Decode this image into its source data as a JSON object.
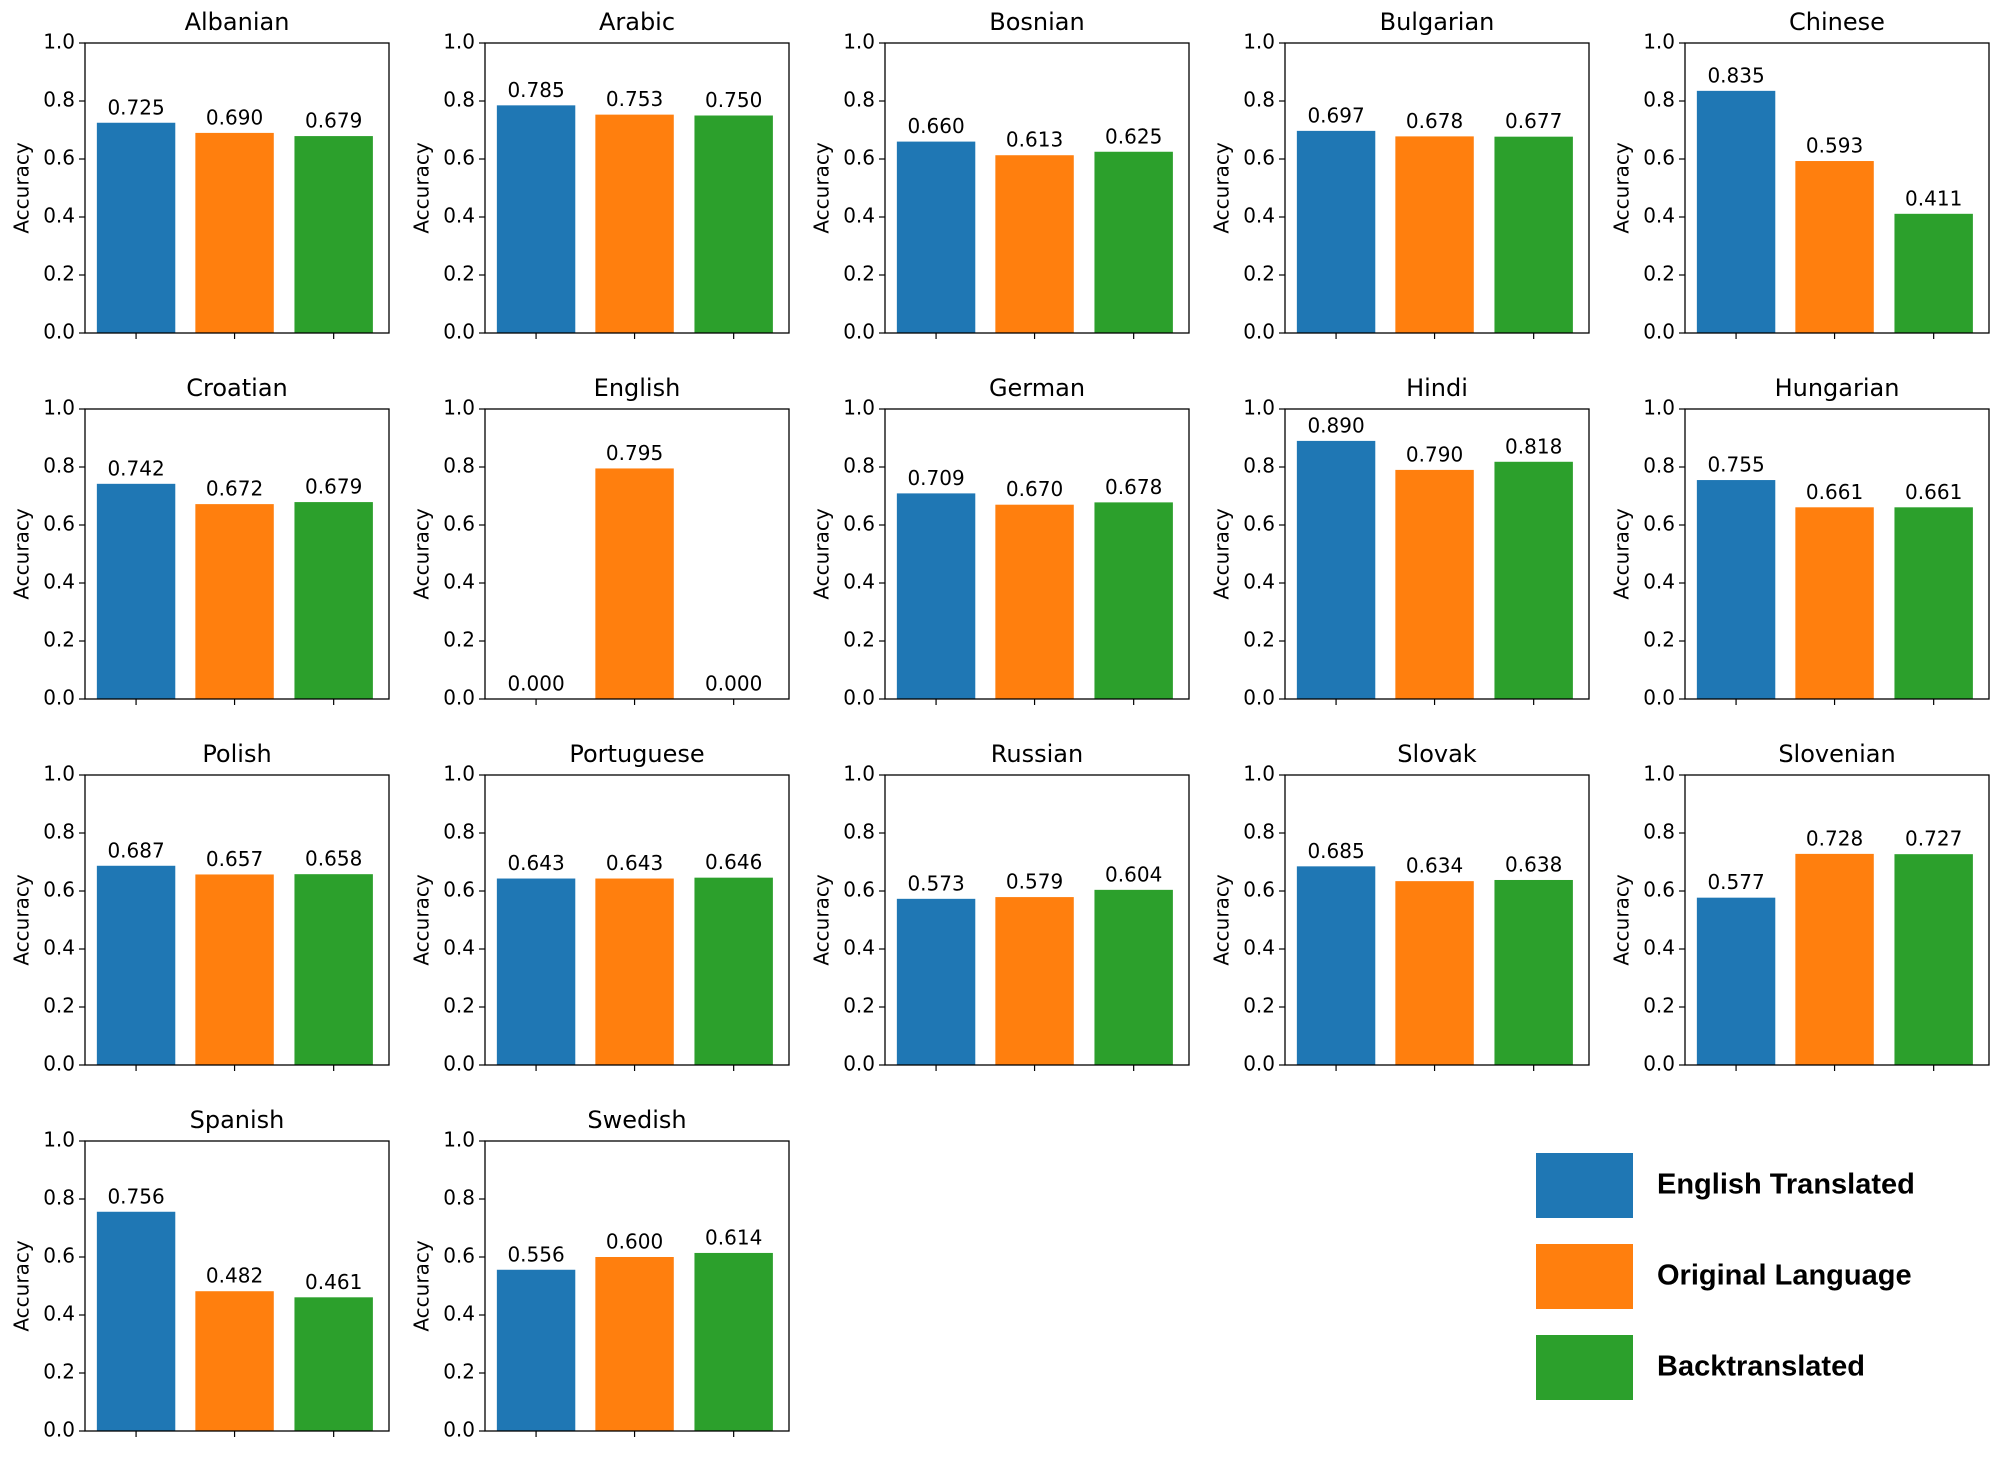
{
  "legend": {
    "series": [
      {
        "name": "English Translated",
        "color": "#1f77b4"
      },
      {
        "name": "Original Language",
        "color": "#ff7f0e"
      },
      {
        "name": "Backtranslated",
        "color": "#2ca02c"
      }
    ]
  },
  "chart_data": [
    {
      "type": "bar",
      "title": "Albanian",
      "y_label": "Accuracy",
      "values": [
        0.725,
        0.69,
        0.679
      ],
      "value_labels": [
        "0.725",
        "0.690",
        "0.679"
      ],
      "ylim": [
        0,
        1
      ],
      "yticks": [
        {
          "value": 0,
          "label": "0.0"
        },
        {
          "value": 0.2,
          "label": "0.2"
        },
        {
          "value": 0.4,
          "label": "0.4"
        },
        {
          "value": 0.6,
          "label": "0.6"
        },
        {
          "value": 0.8,
          "label": "0.8"
        },
        {
          "value": 1,
          "label": "1.0"
        }
      ]
    },
    {
      "type": "bar",
      "title": "Arabic",
      "y_label": "Accuracy",
      "values": [
        0.785,
        0.753,
        0.75
      ],
      "value_labels": [
        "0.785",
        "0.753",
        "0.750"
      ],
      "ylim": [
        0,
        1
      ],
      "yticks": [
        {
          "value": 0,
          "label": "0.0"
        },
        {
          "value": 0.2,
          "label": "0.2"
        },
        {
          "value": 0.4,
          "label": "0.4"
        },
        {
          "value": 0.6,
          "label": "0.6"
        },
        {
          "value": 0.8,
          "label": "0.8"
        },
        {
          "value": 1,
          "label": "1.0"
        }
      ]
    },
    {
      "type": "bar",
      "title": "Bosnian",
      "y_label": "Accuracy",
      "values": [
        0.66,
        0.613,
        0.625
      ],
      "value_labels": [
        "0.660",
        "0.613",
        "0.625"
      ],
      "ylim": [
        0,
        1
      ],
      "yticks": [
        {
          "value": 0,
          "label": "0.0"
        },
        {
          "value": 0.2,
          "label": "0.2"
        },
        {
          "value": 0.4,
          "label": "0.4"
        },
        {
          "value": 0.6,
          "label": "0.6"
        },
        {
          "value": 0.8,
          "label": "0.8"
        },
        {
          "value": 1,
          "label": "1.0"
        }
      ]
    },
    {
      "type": "bar",
      "title": "Bulgarian",
      "y_label": "Accuracy",
      "values": [
        0.697,
        0.678,
        0.677
      ],
      "value_labels": [
        "0.697",
        "0.678",
        "0.677"
      ],
      "ylim": [
        0,
        1
      ],
      "yticks": [
        {
          "value": 0,
          "label": "0.0"
        },
        {
          "value": 0.2,
          "label": "0.2"
        },
        {
          "value": 0.4,
          "label": "0.4"
        },
        {
          "value": 0.6,
          "label": "0.6"
        },
        {
          "value": 0.8,
          "label": "0.8"
        },
        {
          "value": 1,
          "label": "1.0"
        }
      ]
    },
    {
      "type": "bar",
      "title": "Chinese",
      "y_label": "Accuracy",
      "values": [
        0.835,
        0.593,
        0.411
      ],
      "value_labels": [
        "0.835",
        "0.593",
        "0.411"
      ],
      "ylim": [
        0,
        1
      ],
      "yticks": [
        {
          "value": 0,
          "label": "0.0"
        },
        {
          "value": 0.2,
          "label": "0.2"
        },
        {
          "value": 0.4,
          "label": "0.4"
        },
        {
          "value": 0.6,
          "label": "0.6"
        },
        {
          "value": 0.8,
          "label": "0.8"
        },
        {
          "value": 1,
          "label": "1.0"
        }
      ]
    },
    {
      "type": "bar",
      "title": "Croatian",
      "y_label": "Accuracy",
      "values": [
        0.742,
        0.672,
        0.679
      ],
      "value_labels": [
        "0.742",
        "0.672",
        "0.679"
      ],
      "ylim": [
        0,
        1
      ],
      "yticks": [
        {
          "value": 0,
          "label": "0.0"
        },
        {
          "value": 0.2,
          "label": "0.2"
        },
        {
          "value": 0.4,
          "label": "0.4"
        },
        {
          "value": 0.6,
          "label": "0.6"
        },
        {
          "value": 0.8,
          "label": "0.8"
        },
        {
          "value": 1,
          "label": "1.0"
        }
      ]
    },
    {
      "type": "bar",
      "title": "English",
      "y_label": "Accuracy",
      "values": [
        0,
        0.795,
        0
      ],
      "value_labels": [
        "0.000",
        "0.795",
        "0.000"
      ],
      "ylim": [
        0,
        1
      ],
      "yticks": [
        {
          "value": 0,
          "label": "0.0"
        },
        {
          "value": 0.2,
          "label": "0.2"
        },
        {
          "value": 0.4,
          "label": "0.4"
        },
        {
          "value": 0.6,
          "label": "0.6"
        },
        {
          "value": 0.8,
          "label": "0.8"
        },
        {
          "value": 1,
          "label": "1.0"
        }
      ]
    },
    {
      "type": "bar",
      "title": "German",
      "y_label": "Accuracy",
      "values": [
        0.709,
        0.67,
        0.678
      ],
      "value_labels": [
        "0.709",
        "0.670",
        "0.678"
      ],
      "ylim": [
        0,
        1
      ],
      "yticks": [
        {
          "value": 0,
          "label": "0.0"
        },
        {
          "value": 0.2,
          "label": "0.2"
        },
        {
          "value": 0.4,
          "label": "0.4"
        },
        {
          "value": 0.6,
          "label": "0.6"
        },
        {
          "value": 0.8,
          "label": "0.8"
        },
        {
          "value": 1,
          "label": "1.0"
        }
      ]
    },
    {
      "type": "bar",
      "title": "Hindi",
      "y_label": "Accuracy",
      "values": [
        0.89,
        0.79,
        0.818
      ],
      "value_labels": [
        "0.890",
        "0.790",
        "0.818"
      ],
      "ylim": [
        0,
        1
      ],
      "yticks": [
        {
          "value": 0,
          "label": "0.0"
        },
        {
          "value": 0.2,
          "label": "0.2"
        },
        {
          "value": 0.4,
          "label": "0.4"
        },
        {
          "value": 0.6,
          "label": "0.6"
        },
        {
          "value": 0.8,
          "label": "0.8"
        },
        {
          "value": 1,
          "label": "1.0"
        }
      ]
    },
    {
      "type": "bar",
      "title": "Hungarian",
      "y_label": "Accuracy",
      "values": [
        0.755,
        0.661,
        0.661
      ],
      "value_labels": [
        "0.755",
        "0.661",
        "0.661"
      ],
      "ylim": [
        0,
        1
      ],
      "yticks": [
        {
          "value": 0,
          "label": "0.0"
        },
        {
          "value": 0.2,
          "label": "0.2"
        },
        {
          "value": 0.4,
          "label": "0.4"
        },
        {
          "value": 0.6,
          "label": "0.6"
        },
        {
          "value": 0.8,
          "label": "0.8"
        },
        {
          "value": 1,
          "label": "1.0"
        }
      ]
    },
    {
      "type": "bar",
      "title": "Polish",
      "y_label": "Accuracy",
      "values": [
        0.687,
        0.657,
        0.658
      ],
      "value_labels": [
        "0.687",
        "0.657",
        "0.658"
      ],
      "ylim": [
        0,
        1
      ],
      "yticks": [
        {
          "value": 0,
          "label": "0.0"
        },
        {
          "value": 0.2,
          "label": "0.2"
        },
        {
          "value": 0.4,
          "label": "0.4"
        },
        {
          "value": 0.6,
          "label": "0.6"
        },
        {
          "value": 0.8,
          "label": "0.8"
        },
        {
          "value": 1,
          "label": "1.0"
        }
      ]
    },
    {
      "type": "bar",
      "title": "Portuguese",
      "y_label": "Accuracy",
      "values": [
        0.643,
        0.643,
        0.646
      ],
      "value_labels": [
        "0.643",
        "0.643",
        "0.646"
      ],
      "ylim": [
        0,
        1
      ],
      "yticks": [
        {
          "value": 0,
          "label": "0.0"
        },
        {
          "value": 0.2,
          "label": "0.2"
        },
        {
          "value": 0.4,
          "label": "0.4"
        },
        {
          "value": 0.6,
          "label": "0.6"
        },
        {
          "value": 0.8,
          "label": "0.8"
        },
        {
          "value": 1,
          "label": "1.0"
        }
      ]
    },
    {
      "type": "bar",
      "title": "Russian",
      "y_label": "Accuracy",
      "values": [
        0.573,
        0.579,
        0.604
      ],
      "value_labels": [
        "0.573",
        "0.579",
        "0.604"
      ],
      "ylim": [
        0,
        1
      ],
      "yticks": [
        {
          "value": 0,
          "label": "0.0"
        },
        {
          "value": 0.2,
          "label": "0.2"
        },
        {
          "value": 0.4,
          "label": "0.4"
        },
        {
          "value": 0.6,
          "label": "0.6"
        },
        {
          "value": 0.8,
          "label": "0.8"
        },
        {
          "value": 1,
          "label": "1.0"
        }
      ]
    },
    {
      "type": "bar",
      "title": "Slovak",
      "y_label": "Accuracy",
      "values": [
        0.685,
        0.634,
        0.638
      ],
      "value_labels": [
        "0.685",
        "0.634",
        "0.638"
      ],
      "ylim": [
        0,
        1
      ],
      "yticks": [
        {
          "value": 0,
          "label": "0.0"
        },
        {
          "value": 0.2,
          "label": "0.2"
        },
        {
          "value": 0.4,
          "label": "0.4"
        },
        {
          "value": 0.6,
          "label": "0.6"
        },
        {
          "value": 0.8,
          "label": "0.8"
        },
        {
          "value": 1,
          "label": "1.0"
        }
      ]
    },
    {
      "type": "bar",
      "title": "Slovenian",
      "y_label": "Accuracy",
      "values": [
        0.577,
        0.728,
        0.727
      ],
      "value_labels": [
        "0.577",
        "0.728",
        "0.727"
      ],
      "ylim": [
        0,
        1
      ],
      "yticks": [
        {
          "value": 0,
          "label": "0.0"
        },
        {
          "value": 0.2,
          "label": "0.2"
        },
        {
          "value": 0.4,
          "label": "0.4"
        },
        {
          "value": 0.6,
          "label": "0.6"
        },
        {
          "value": 0.8,
          "label": "0.8"
        },
        {
          "value": 1,
          "label": "1.0"
        }
      ]
    },
    {
      "type": "bar",
      "title": "Spanish",
      "y_label": "Accuracy",
      "values": [
        0.756,
        0.482,
        0.461
      ],
      "value_labels": [
        "0.756",
        "0.482",
        "0.461"
      ],
      "ylim": [
        0,
        1
      ],
      "yticks": [
        {
          "value": 0,
          "label": "0.0"
        },
        {
          "value": 0.2,
          "label": "0.2"
        },
        {
          "value": 0.4,
          "label": "0.4"
        },
        {
          "value": 0.6,
          "label": "0.6"
        },
        {
          "value": 0.8,
          "label": "0.8"
        },
        {
          "value": 1,
          "label": "1.0"
        }
      ]
    },
    {
      "type": "bar",
      "title": "Swedish",
      "y_label": "Accuracy",
      "values": [
        0.556,
        0.6,
        0.614
      ],
      "value_labels": [
        "0.556",
        "0.600",
        "0.614"
      ],
      "ylim": [
        0,
        1
      ],
      "yticks": [
        {
          "value": 0,
          "label": "0.0"
        },
        {
          "value": 0.2,
          "label": "0.2"
        },
        {
          "value": 0.4,
          "label": "0.4"
        },
        {
          "value": 0.6,
          "label": "0.6"
        },
        {
          "value": 0.8,
          "label": "0.8"
        },
        {
          "value": 1,
          "label": "1.0"
        }
      ]
    }
  ]
}
